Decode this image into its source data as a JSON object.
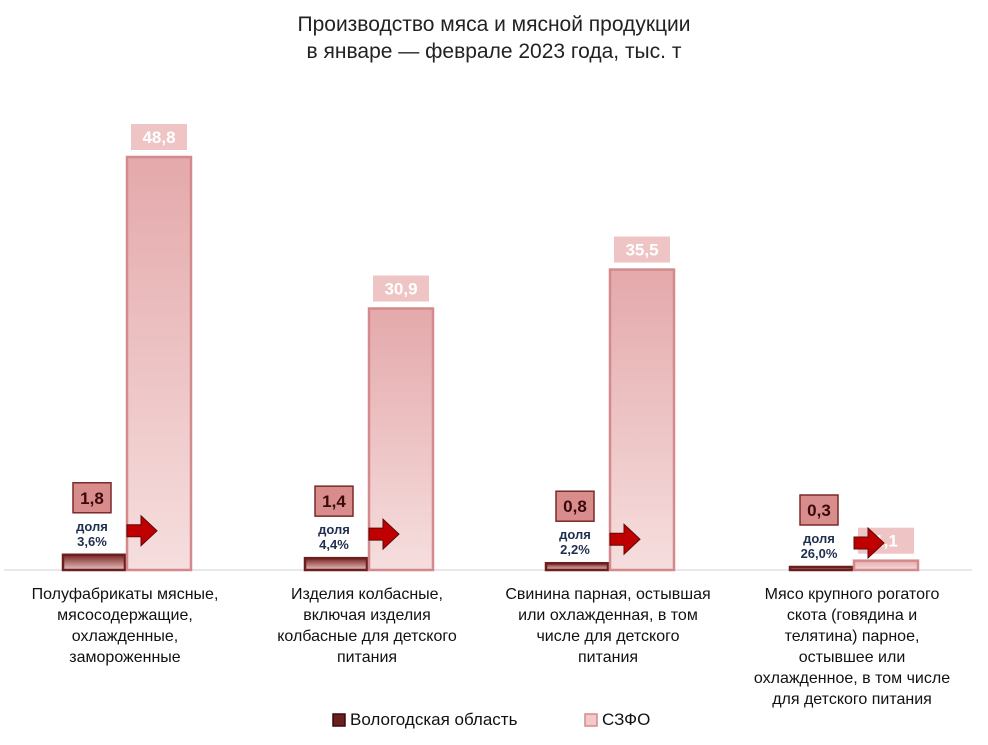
{
  "chart_data": {
    "type": "bar",
    "title": "Производство мяса и мясной продукции\nв январе — феврале 2023 года, тыс. т",
    "categories": [
      "Полуфабрикаты мясные,\nмясосодержащие,\nохлажденные,\nзамороженные",
      "Изделия колбасные,\nвключая  изделия\nколбасные для детского\nпитания",
      "Свинина парная, остывшая\nили охлажденная, в том\nчисле для детского\nпитания",
      "Мясо крупного рогатого\nскота (говядина и\nтелятина) парное,\nостывшее или\nохлажденное, в том числе\nдля детского питания"
    ],
    "series": [
      {
        "name": "Вологодская область",
        "values": [
          1.8,
          1.4,
          0.8,
          0.3
        ],
        "labels": [
          "1,8",
          "1,4",
          "0,8",
          "0,3"
        ],
        "color": "#6b1f1f"
      },
      {
        "name": "СЗФО",
        "values": [
          48.8,
          30.9,
          35.5,
          1.1
        ],
        "labels": [
          "48,8",
          "30,9",
          "35,5",
          "1,1"
        ],
        "color": "#e8b0b0"
      }
    ],
    "share_labels": [
      "доля\n3,6%",
      "доля\n4,4%",
      "доля\n2,2%",
      "доля\n26,0%"
    ],
    "ylim": [
      0,
      55
    ],
    "grid": false,
    "legend": "bottom",
    "colors": {
      "arrow": "#c00000",
      "label_box_vol": "#d98c8c",
      "label_box_szfo": "#efc4c4"
    }
  }
}
